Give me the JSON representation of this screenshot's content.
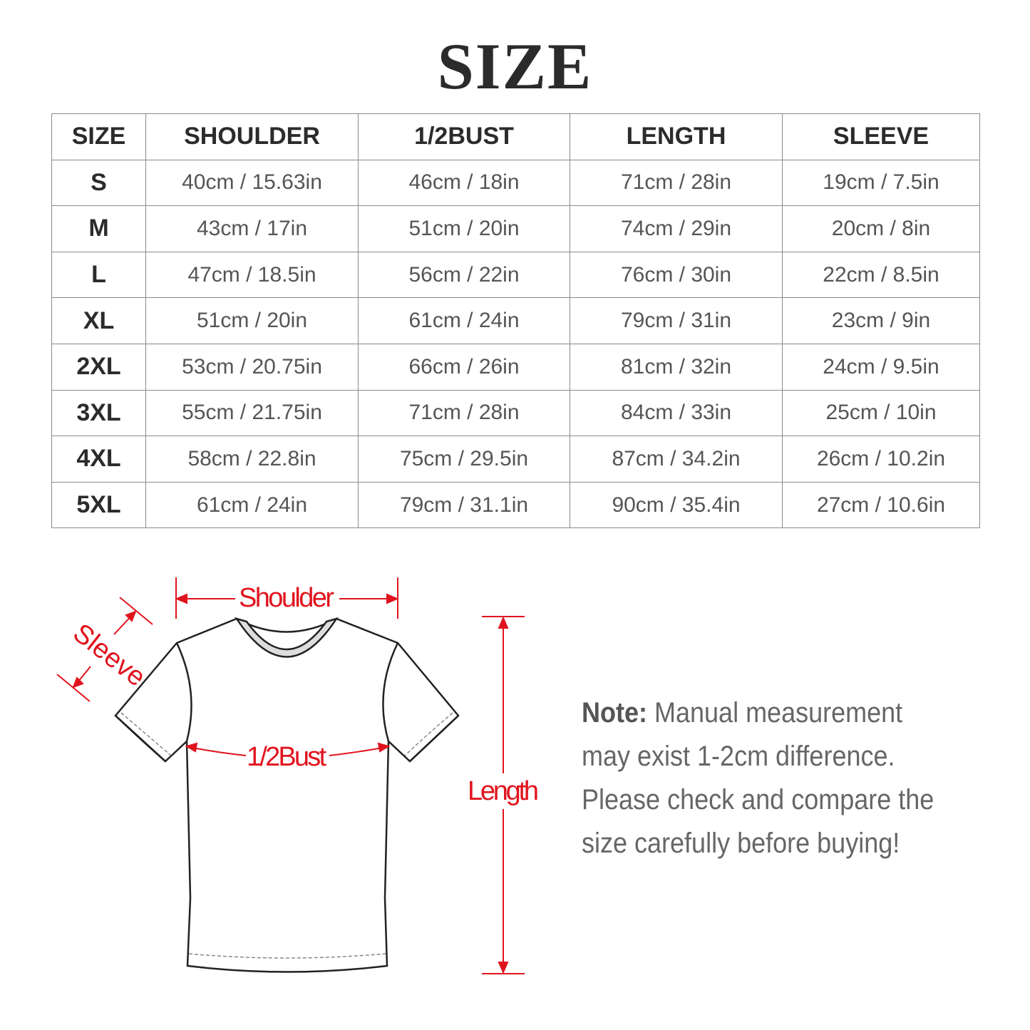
{
  "title": "SIZE",
  "table": {
    "headers": [
      "SIZE",
      "SHOULDER",
      "1/2BUST",
      "LENGTH",
      "SLEEVE"
    ],
    "rows": [
      [
        "S",
        "40cm / 15.63in",
        "46cm / 18in",
        "71cm / 28in",
        "19cm / 7.5in"
      ],
      [
        "M",
        "43cm / 17in",
        "51cm / 20in",
        "74cm / 29in",
        "20cm / 8in"
      ],
      [
        "L",
        "47cm / 18.5in",
        "56cm / 22in",
        "76cm / 30in",
        "22cm / 8.5in"
      ],
      [
        "XL",
        "51cm / 20in",
        "61cm / 24in",
        "79cm / 31in",
        "23cm / 9in"
      ],
      [
        "2XL",
        "53cm / 20.75in",
        "66cm / 26in",
        "81cm / 32in",
        "24cm / 9.5in"
      ],
      [
        "3XL",
        "55cm / 21.75in",
        "71cm / 28in",
        "84cm / 33in",
        "25cm / 10in"
      ],
      [
        "4XL",
        "58cm / 22.8in",
        "75cm / 29.5in",
        "87cm / 34.2in",
        "26cm / 10.2in"
      ],
      [
        "5XL",
        "61cm / 24in",
        "79cm / 31.1in",
        "90cm / 35.4in",
        "27cm / 10.6in"
      ]
    ]
  },
  "diagram": {
    "shoulder": "Shoulder",
    "sleeve": "Sleeve",
    "bust": "1/2Bust",
    "length": "Length",
    "accent": "#e0141e"
  },
  "note": {
    "label": "Note:",
    "text": " Manual measurement may exist 1-2cm difference. Please check and compare the size carefully before buying!"
  }
}
